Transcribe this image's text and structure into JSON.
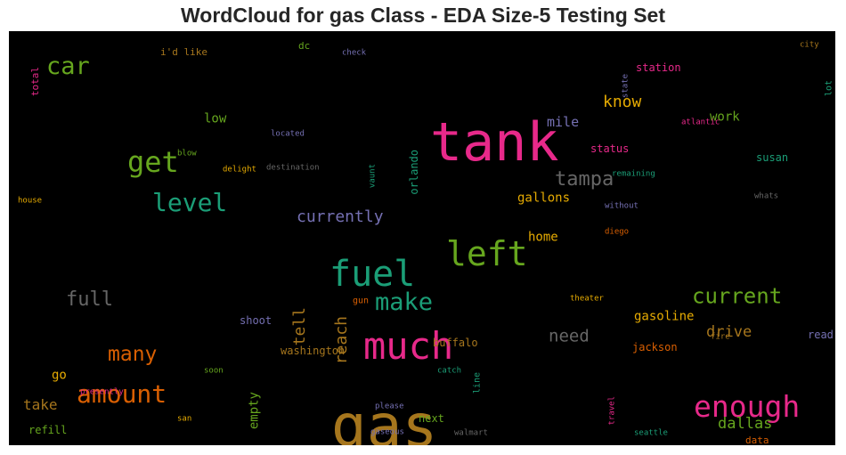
{
  "title": "WordCloud for gas Class - EDA Size-5 Testing Set",
  "chart_data": {
    "type": "wordcloud",
    "background": "#000000",
    "words": [
      {
        "text": "gas",
        "color": "#a6761d",
        "weight": 66
      },
      {
        "text": "tank",
        "color": "#e7298a",
        "weight": 60
      },
      {
        "text": "much",
        "color": "#e7298a",
        "weight": 42
      },
      {
        "text": "fuel",
        "color": "#1b9e77",
        "weight": 40
      },
      {
        "text": "left",
        "color": "#66a61e",
        "weight": 38
      },
      {
        "text": "enough",
        "color": "#e7298a",
        "weight": 33
      },
      {
        "text": "get",
        "color": "#66a61e",
        "weight": 32
      },
      {
        "text": "level",
        "color": "#1b9e77",
        "weight": 28
      },
      {
        "text": "amount",
        "color": "#d95f02",
        "weight": 28
      },
      {
        "text": "car",
        "color": "#66a61e",
        "weight": 27
      },
      {
        "text": "make",
        "color": "#1b9e77",
        "weight": 27
      },
      {
        "text": "current",
        "color": "#66a61e",
        "weight": 24
      },
      {
        "text": "many",
        "color": "#d95f02",
        "weight": 23
      },
      {
        "text": "tampa",
        "color": "#666666",
        "weight": 22
      },
      {
        "text": "full",
        "color": "#666666",
        "weight": 22
      },
      {
        "text": "need",
        "color": "#666666",
        "weight": 19
      },
      {
        "text": "currently",
        "color": "#7570b3",
        "weight": 18
      },
      {
        "text": "know",
        "color": "#e6ab02",
        "weight": 18
      },
      {
        "text": "reach",
        "color": "#a6761d",
        "weight": 18
      },
      {
        "text": "tell",
        "color": "#a6761d",
        "weight": 18
      },
      {
        "text": "dallas",
        "color": "#66a61e",
        "weight": 17
      },
      {
        "text": "drive",
        "color": "#a6761d",
        "weight": 17
      },
      {
        "text": "take",
        "color": "#a6761d",
        "weight": 16
      },
      {
        "text": "mile",
        "color": "#7570b3",
        "weight": 15
      },
      {
        "text": "gasoline",
        "color": "#e6ab02",
        "weight": 14
      },
      {
        "text": "home",
        "color": "#e6ab02",
        "weight": 14
      },
      {
        "text": "gallons",
        "color": "#e6ab02",
        "weight": 14
      },
      {
        "text": "work",
        "color": "#66a61e",
        "weight": 14
      },
      {
        "text": "low",
        "color": "#66a61e",
        "weight": 14
      },
      {
        "text": "go",
        "color": "#e6ab02",
        "weight": 14
      },
      {
        "text": "empty",
        "color": "#66a61e",
        "weight": 14
      },
      {
        "text": "refill",
        "color": "#66a61e",
        "weight": 12
      },
      {
        "text": "washington",
        "color": "#a6761d",
        "weight": 12
      },
      {
        "text": "shoot",
        "color": "#7570b3",
        "weight": 12
      },
      {
        "text": "buffalo",
        "color": "#a6761d",
        "weight": 12
      },
      {
        "text": "jackson",
        "color": "#d95f02",
        "weight": 12
      },
      {
        "text": "read",
        "color": "#7570b3",
        "weight": 12
      },
      {
        "text": "susan",
        "color": "#1b9e77",
        "weight": 12
      },
      {
        "text": "status",
        "color": "#e7298a",
        "weight": 12
      },
      {
        "text": "station",
        "color": "#e7298a",
        "weight": 12
      },
      {
        "text": "orlando",
        "color": "#1b9e77",
        "weight": 12
      },
      {
        "text": "next",
        "color": "#66a61e",
        "weight": 12
      },
      {
        "text": "data",
        "color": "#d95f02",
        "weight": 11
      },
      {
        "text": "total",
        "color": "#e7298a",
        "weight": 11
      },
      {
        "text": "i'd like",
        "color": "#a6761d",
        "weight": 11
      },
      {
        "text": "dc",
        "color": "#66a61e",
        "weight": 11
      },
      {
        "text": "gun",
        "color": "#d95f02",
        "weight": 10
      },
      {
        "text": "lot",
        "color": "#1b9e77",
        "weight": 10
      },
      {
        "text": "line",
        "color": "#1b9e77",
        "weight": 10
      },
      {
        "text": "check",
        "color": "#7570b3",
        "weight": 9
      },
      {
        "text": "state",
        "color": "#7570b3",
        "weight": 9
      },
      {
        "text": "city",
        "color": "#a6761d",
        "weight": 9
      },
      {
        "text": "atlantic",
        "color": "#e7298a",
        "weight": 9
      },
      {
        "text": "located",
        "color": "#7570b3",
        "weight": 9
      },
      {
        "text": "blow",
        "color": "#66a61e",
        "weight": 9
      },
      {
        "text": "delight",
        "color": "#e6ab02",
        "weight": 9
      },
      {
        "text": "destination",
        "color": "#666666",
        "weight": 9
      },
      {
        "text": "vaunt",
        "color": "#1b9e77",
        "weight": 9
      },
      {
        "text": "remaining",
        "color": "#1b9e77",
        "weight": 9
      },
      {
        "text": "whats",
        "color": "#666666",
        "weight": 9
      },
      {
        "text": "house",
        "color": "#e6ab02",
        "weight": 9
      },
      {
        "text": "without",
        "color": "#7570b3",
        "weight": 9
      },
      {
        "text": "diego",
        "color": "#d95f02",
        "weight": 9
      },
      {
        "text": "theater",
        "color": "#e6ab02",
        "weight": 9
      },
      {
        "text": "fire",
        "color": "#a6761d",
        "weight": 9
      },
      {
        "text": "soon",
        "color": "#66a61e",
        "weight": 9
      },
      {
        "text": "presently",
        "color": "#e7298a",
        "weight": 9
      },
      {
        "text": "catch",
        "color": "#1b9e77",
        "weight": 9
      },
      {
        "text": "please",
        "color": "#7570b3",
        "weight": 9
      },
      {
        "text": "travel",
        "color": "#e7298a",
        "weight": 9
      },
      {
        "text": "san",
        "color": "#e6ab02",
        "weight": 9
      },
      {
        "text": "gaseous",
        "color": "#7570b3",
        "weight": 9
      },
      {
        "text": "walmart",
        "color": "#666666",
        "weight": 9
      },
      {
        "text": "seattle",
        "color": "#1b9e77",
        "weight": 9
      }
    ]
  }
}
